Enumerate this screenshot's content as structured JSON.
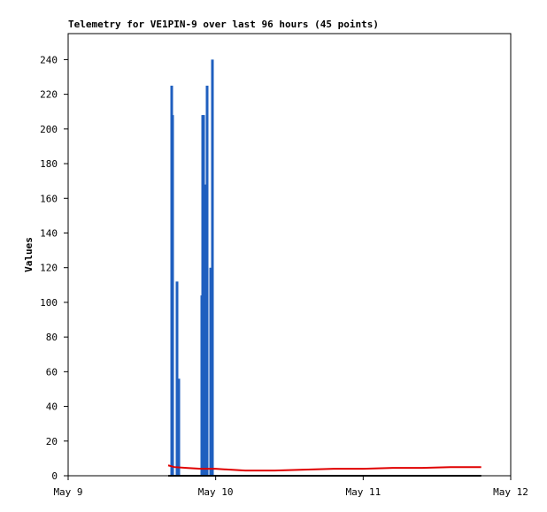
{
  "chart_data": {
    "type": "line",
    "title": "Telemetry for VE1PIN-9 over last 96 hours (45 points)",
    "y_label": "Values",
    "xlim": [
      0,
      3
    ],
    "xticks": [
      {
        "value": 0,
        "label": "May 9"
      },
      {
        "value": 1,
        "label": "May 10"
      },
      {
        "value": 2,
        "label": "May 11"
      },
      {
        "value": 3,
        "label": "May 12"
      }
    ],
    "ylim": [
      0,
      255
    ],
    "yticks": [
      0,
      20,
      40,
      60,
      80,
      100,
      120,
      140,
      160,
      180,
      200,
      220,
      240
    ],
    "grid": false,
    "series": [
      {
        "color": "#1f5fbf",
        "style": "impulses",
        "x": [
          0.702,
          0.708,
          0.738,
          0.75,
          0.906,
          0.912,
          0.918,
          0.936,
          0.942,
          0.966,
          0.978
        ],
        "values": [
          225,
          208,
          112,
          56,
          104,
          208,
          208,
          168,
          225,
          120,
          240
        ]
      },
      {
        "color": "#e00000",
        "style": "lines",
        "x": [
          0.678,
          0.72,
          0.8,
          0.9,
          1.0,
          1.2,
          1.4,
          1.6,
          1.8,
          2.0,
          2.2,
          2.4,
          2.6,
          2.8
        ],
        "values": [
          6,
          5,
          4.5,
          4,
          4,
          3,
          3,
          3.5,
          4,
          4,
          4.5,
          4.5,
          5,
          5
        ]
      },
      {
        "color": "#000000",
        "style": "lines",
        "x": [
          0.678,
          2.8
        ],
        "values": [
          0,
          0
        ]
      }
    ]
  }
}
